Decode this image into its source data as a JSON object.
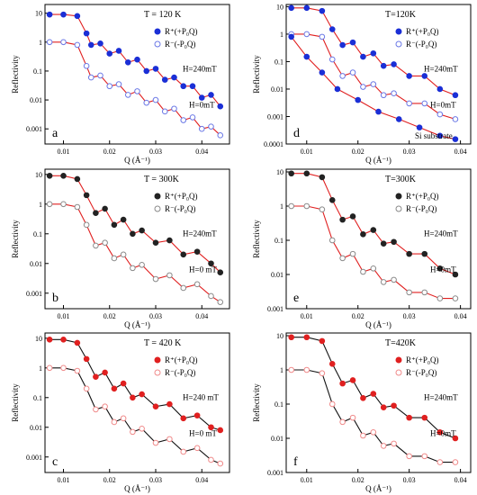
{
  "figure": {
    "panels": [
      {
        "letter": "a",
        "temp": "T = 120 K",
        "leg_plus": "R⁺(+P₀Q)",
        "leg_minus": "R⁻(-P₀Q)",
        "h1": "H=240mT",
        "h2": "H=0mT",
        "extra": "",
        "plus_color": "#1b2fd6",
        "minus_color": "#6a78e6",
        "line_color": "#e02020"
      },
      {
        "letter": "d",
        "temp": "T=120K",
        "leg_plus": "R⁺(+P₀Q)",
        "leg_minus": "R⁻(-P₀Q)",
        "h1": "H=240mT",
        "h2": "H=0mT",
        "extra": "Si substrate",
        "plus_color": "#1b2fd6",
        "minus_color": "#6a78e6",
        "line_color": "#e02020"
      },
      {
        "letter": "b",
        "temp": "T = 300K",
        "leg_plus": "R⁺(+P₀Q)",
        "leg_minus": "R⁻(-P₀Q)",
        "h1": "H=240mT",
        "h2": "H=0 mT",
        "extra": "",
        "plus_color": "#222222",
        "minus_color": "#8a8a8a",
        "line_color": "#e02020"
      },
      {
        "letter": "e",
        "temp": "T=300K",
        "leg_plus": "R⁺(+P₀Q)",
        "leg_minus": "R⁻(-P₀Q)",
        "h1": "H=240mT",
        "h2": "H=0mT",
        "extra": "",
        "plus_color": "#222222",
        "minus_color": "#8a8a8a",
        "line_color": "#e02020"
      },
      {
        "letter": "c",
        "temp": "T = 420 K",
        "leg_plus": "R⁺(+P₀Q)",
        "leg_minus": "R⁻(-P₀Q)",
        "h1": "H=240 mT",
        "h2": "H=0 mT",
        "extra": "",
        "plus_color": "#e02020",
        "minus_color": "#f08a8a",
        "line_color": "#111111"
      },
      {
        "letter": "f",
        "temp": "T=420K",
        "leg_plus": "R⁺(+P₀Q)",
        "leg_minus": "R⁻(-P₀Q)",
        "h1": "H=240mT",
        "h2": "H=0mT",
        "extra": "",
        "plus_color": "#e02020",
        "minus_color": "#f08a8a",
        "line_color": "#111111"
      }
    ]
  },
  "chart_data": [
    {
      "type": "scatter",
      "panel": "a",
      "title": "",
      "xlabel": "Q (Å⁻¹)",
      "ylabel": "Reflectivity",
      "xlim": [
        0.006,
        0.046
      ],
      "ylim": [
        0.0003,
        20
      ],
      "yscale": "log",
      "xticks": [
        "0.01",
        "0.02",
        "0.03",
        "0.04"
      ],
      "yticks": [
        "10",
        "1",
        "0.1",
        "0.01",
        "0.001"
      ],
      "series": [
        {
          "name": "R⁺(+P₀Q)",
          "x": [
            0.007,
            0.01,
            0.013,
            0.015,
            0.016,
            0.018,
            0.02,
            0.022,
            0.024,
            0.026,
            0.028,
            0.03,
            0.032,
            0.034,
            0.036,
            0.038,
            0.04,
            0.042,
            0.044
          ],
          "y": [
            9,
            9,
            8,
            2,
            0.8,
            0.9,
            0.4,
            0.5,
            0.2,
            0.25,
            0.1,
            0.12,
            0.05,
            0.06,
            0.03,
            0.03,
            0.012,
            0.015,
            0.006
          ]
        },
        {
          "name": "R⁻(-P₀Q)",
          "x": [
            0.007,
            0.01,
            0.013,
            0.015,
            0.016,
            0.018,
            0.02,
            0.022,
            0.024,
            0.026,
            0.028,
            0.03,
            0.032,
            0.034,
            0.036,
            0.038,
            0.04,
            0.042,
            0.044
          ],
          "y": [
            1,
            1,
            0.8,
            0.15,
            0.06,
            0.07,
            0.03,
            0.035,
            0.015,
            0.02,
            0.008,
            0.01,
            0.004,
            0.005,
            0.002,
            0.0025,
            0.001,
            0.0012,
            0.0006
          ]
        }
      ]
    },
    {
      "type": "scatter",
      "panel": "d",
      "title": "",
      "xlabel": "Q (Å⁻¹)",
      "ylabel": "Reflectivity",
      "xlim": [
        0.006,
        0.042
      ],
      "ylim": [
        0.0001,
        12
      ],
      "yscale": "log",
      "xticks": [
        "0.01",
        "0.02",
        "0.03",
        "0.04"
      ],
      "yticks": [
        "10",
        "1",
        "0.1",
        "0.01",
        "0.001",
        "0.0001"
      ],
      "series": [
        {
          "name": "R⁺(+P₀Q)",
          "x": [
            0.007,
            0.01,
            0.013,
            0.015,
            0.017,
            0.019,
            0.021,
            0.023,
            0.025,
            0.027,
            0.03,
            0.033,
            0.036,
            0.039
          ],
          "y": [
            9,
            9,
            7,
            1.5,
            0.4,
            0.5,
            0.15,
            0.2,
            0.07,
            0.08,
            0.03,
            0.03,
            0.01,
            0.006
          ]
        },
        {
          "name": "R⁻(-P₀Q)",
          "x": [
            0.007,
            0.01,
            0.013,
            0.015,
            0.017,
            0.019,
            0.021,
            0.023,
            0.025,
            0.027,
            0.03,
            0.033,
            0.036,
            0.039
          ],
          "y": [
            1,
            1,
            0.8,
            0.12,
            0.03,
            0.04,
            0.012,
            0.015,
            0.006,
            0.007,
            0.003,
            0.003,
            0.0012,
            0.0008
          ]
        },
        {
          "name": "Si substrate",
          "x": [
            0.007,
            0.01,
            0.013,
            0.016,
            0.02,
            0.024,
            0.028,
            0.032,
            0.036,
            0.039
          ],
          "y": [
            0.8,
            0.15,
            0.04,
            0.01,
            0.004,
            0.0015,
            0.0008,
            0.0004,
            0.0002,
            0.00015
          ]
        }
      ]
    },
    {
      "type": "scatter",
      "panel": "b",
      "title": "",
      "xlabel": "Q (Å⁻¹)",
      "ylabel": "Reflectivity",
      "xlim": [
        0.006,
        0.046
      ],
      "ylim": [
        0.0003,
        15
      ],
      "yscale": "log",
      "xticks": [
        "0.01",
        "0.02",
        "0.03",
        "0.04"
      ],
      "yticks": [
        "10",
        "1",
        "0.1",
        "0.01",
        "0.001"
      ],
      "series": [
        {
          "name": "R⁺(+P₀Q)",
          "x": [
            0.007,
            0.01,
            0.013,
            0.015,
            0.017,
            0.019,
            0.021,
            0.023,
            0.025,
            0.027,
            0.03,
            0.033,
            0.036,
            0.039,
            0.042,
            0.044
          ],
          "y": [
            9,
            9,
            7,
            2,
            0.5,
            0.7,
            0.2,
            0.3,
            0.1,
            0.13,
            0.05,
            0.06,
            0.02,
            0.025,
            0.01,
            0.005
          ]
        },
        {
          "name": "R⁻(-P₀Q)",
          "x": [
            0.007,
            0.01,
            0.013,
            0.015,
            0.017,
            0.019,
            0.021,
            0.023,
            0.025,
            0.027,
            0.03,
            0.033,
            0.036,
            0.039,
            0.042,
            0.044
          ],
          "y": [
            1,
            1,
            0.8,
            0.2,
            0.04,
            0.05,
            0.015,
            0.02,
            0.007,
            0.009,
            0.003,
            0.004,
            0.0015,
            0.002,
            0.0008,
            0.0005
          ]
        }
      ]
    },
    {
      "type": "scatter",
      "panel": "e",
      "title": "",
      "xlabel": "Q (Å⁻¹)",
      "ylabel": "Reflectivity",
      "xlim": [
        0.006,
        0.042
      ],
      "ylim": [
        0.001,
        12
      ],
      "yscale": "log",
      "xticks": [
        "0.01",
        "0.02",
        "0.03",
        "0.04"
      ],
      "yticks": [
        "10",
        "1",
        "0.1",
        "0.01",
        "0.001"
      ],
      "series": [
        {
          "name": "R⁺(+P₀Q)",
          "x": [
            0.007,
            0.01,
            0.013,
            0.015,
            0.017,
            0.019,
            0.021,
            0.023,
            0.025,
            0.027,
            0.03,
            0.033,
            0.036,
            0.039
          ],
          "y": [
            9,
            9,
            7,
            1.5,
            0.4,
            0.5,
            0.15,
            0.2,
            0.08,
            0.09,
            0.04,
            0.04,
            0.015,
            0.01
          ]
        },
        {
          "name": "R⁻(-P₀Q)",
          "x": [
            0.007,
            0.01,
            0.013,
            0.015,
            0.017,
            0.019,
            0.021,
            0.023,
            0.025,
            0.027,
            0.03,
            0.033,
            0.036,
            0.039
          ],
          "y": [
            1,
            1,
            0.8,
            0.1,
            0.03,
            0.04,
            0.012,
            0.015,
            0.006,
            0.007,
            0.003,
            0.003,
            0.002,
            0.002
          ]
        }
      ]
    },
    {
      "type": "scatter",
      "panel": "c",
      "title": "",
      "xlabel": "Q (Å⁻¹)",
      "ylabel": "Reflectivity",
      "xlim": [
        0.006,
        0.046
      ],
      "ylim": [
        0.0003,
        15
      ],
      "yscale": "log",
      "xticks": [
        "0.01",
        "0.02",
        "0.03",
        "0.04"
      ],
      "yticks": [
        "10",
        "1",
        "0.1",
        "0.01",
        "0.001"
      ],
      "series": [
        {
          "name": "R⁺(+P₀Q)",
          "x": [
            0.007,
            0.01,
            0.013,
            0.015,
            0.017,
            0.019,
            0.021,
            0.023,
            0.025,
            0.027,
            0.03,
            0.033,
            0.036,
            0.039,
            0.042,
            0.044
          ],
          "y": [
            9,
            9,
            7,
            2,
            0.5,
            0.7,
            0.2,
            0.3,
            0.1,
            0.13,
            0.05,
            0.06,
            0.02,
            0.025,
            0.01,
            0.008
          ]
        },
        {
          "name": "R⁻(-P₀Q)",
          "x": [
            0.007,
            0.01,
            0.013,
            0.015,
            0.017,
            0.019,
            0.021,
            0.023,
            0.025,
            0.027,
            0.03,
            0.033,
            0.036,
            0.039,
            0.042,
            0.044
          ],
          "y": [
            1,
            1,
            0.8,
            0.2,
            0.04,
            0.05,
            0.015,
            0.02,
            0.007,
            0.009,
            0.003,
            0.004,
            0.0015,
            0.002,
            0.0008,
            0.0006
          ]
        }
      ]
    },
    {
      "type": "scatter",
      "panel": "f",
      "title": "",
      "xlabel": "Q (Å⁻¹)",
      "ylabel": "Reflectivity",
      "xlim": [
        0.006,
        0.042
      ],
      "ylim": [
        0.001,
        12
      ],
      "yscale": "log",
      "xticks": [
        "0.01",
        "0.02",
        "0.03",
        "0.04"
      ],
      "yticks": [
        "10",
        "1",
        "0.1",
        "0.01",
        "0.001"
      ],
      "series": [
        {
          "name": "R⁺(+P₀Q)",
          "x": [
            0.007,
            0.01,
            0.013,
            0.015,
            0.017,
            0.019,
            0.021,
            0.023,
            0.025,
            0.027,
            0.03,
            0.033,
            0.036,
            0.039
          ],
          "y": [
            9,
            9,
            7,
            1.5,
            0.4,
            0.5,
            0.15,
            0.2,
            0.08,
            0.09,
            0.04,
            0.04,
            0.015,
            0.01
          ]
        },
        {
          "name": "R⁻(-P₀Q)",
          "x": [
            0.007,
            0.01,
            0.013,
            0.015,
            0.017,
            0.019,
            0.021,
            0.023,
            0.025,
            0.027,
            0.03,
            0.033,
            0.036,
            0.039
          ],
          "y": [
            1,
            1,
            0.8,
            0.1,
            0.03,
            0.04,
            0.012,
            0.015,
            0.006,
            0.007,
            0.003,
            0.003,
            0.002,
            0.002
          ]
        }
      ]
    }
  ]
}
